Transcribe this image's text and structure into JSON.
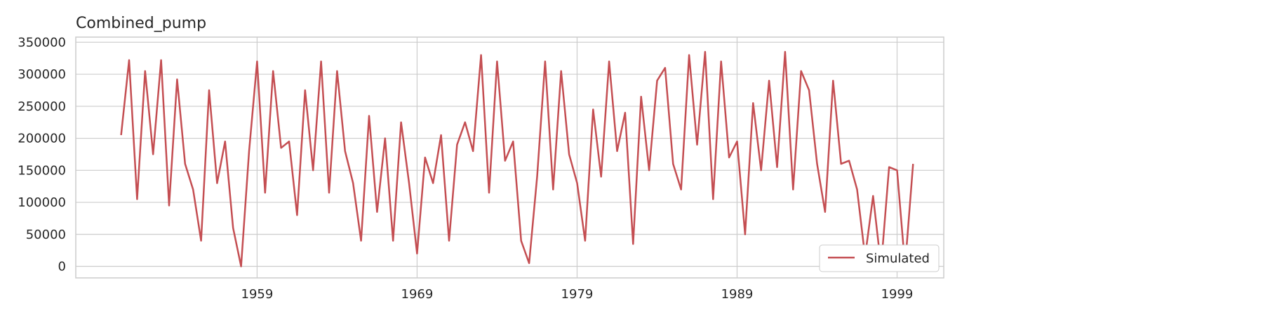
{
  "chart_data": {
    "type": "line",
    "title": "Combined_pump",
    "xlabel": "",
    "ylabel": "",
    "x_ticks": [
      "1959",
      "1969",
      "1979",
      "1989",
      "1999"
    ],
    "y_ticks": [
      "0",
      "50000",
      "100000",
      "150000",
      "200000",
      "250000",
      "300000",
      "350000"
    ],
    "ylim": [
      -18000,
      358000
    ],
    "xlim": [
      "1948-03",
      "2002-06"
    ],
    "grid": true,
    "legend": {
      "placement": "lower-right",
      "entries": [
        "Simulated"
      ]
    },
    "series": [
      {
        "name": "Simulated",
        "color": "#c44e52",
        "x": [
          "1951-01",
          "1951-07",
          "1952-01",
          "1952-07",
          "1953-01",
          "1953-07",
          "1954-01",
          "1954-07",
          "1955-01",
          "1955-07",
          "1956-01",
          "1956-07",
          "1957-01",
          "1957-07",
          "1958-01",
          "1958-07",
          "1959-01",
          "1959-07",
          "1960-01",
          "1960-07",
          "1961-01",
          "1961-07",
          "1962-01",
          "1962-07",
          "1963-01",
          "1963-07",
          "1964-01",
          "1964-07",
          "1965-01",
          "1965-07",
          "1966-01",
          "1966-07",
          "1967-01",
          "1967-07",
          "1968-01",
          "1968-07",
          "1969-01",
          "1969-07",
          "1970-01",
          "1970-07",
          "1971-01",
          "1971-07",
          "1972-01",
          "1972-07",
          "1973-01",
          "1973-07",
          "1974-01",
          "1974-07",
          "1975-01",
          "1975-07",
          "1976-01",
          "1976-07",
          "1977-01",
          "1977-07",
          "1978-01",
          "1978-07",
          "1979-01",
          "1979-07",
          "1980-01",
          "1980-07",
          "1981-01",
          "1981-07",
          "1982-01",
          "1982-07",
          "1983-01",
          "1983-07",
          "1984-01",
          "1984-07",
          "1985-01",
          "1985-07",
          "1986-01",
          "1986-07",
          "1987-01",
          "1987-07",
          "1988-01",
          "1988-07",
          "1989-01",
          "1989-07",
          "1990-01",
          "1990-07",
          "1991-01",
          "1991-07",
          "1992-01",
          "1992-07",
          "1993-01",
          "1993-07",
          "1994-01",
          "1994-07",
          "1995-01",
          "1995-07",
          "1996-01",
          "1996-07",
          "1997-01",
          "1997-07",
          "1998-01",
          "1998-07",
          "1999-01",
          "1999-07",
          "2000-01",
          "2000-07"
        ],
        "values": [
          205000,
          322000,
          105000,
          305000,
          175000,
          322000,
          95000,
          292000,
          160000,
          120000,
          40000,
          275000,
          130000,
          195000,
          60000,
          0,
          180000,
          320000,
          115000,
          305000,
          185000,
          195000,
          80000,
          275000,
          150000,
          320000,
          115000,
          305000,
          180000,
          130000,
          40000,
          235000,
          85000,
          200000,
          40000,
          225000,
          130000,
          20000,
          170000,
          130000,
          205000,
          40000,
          190000,
          225000,
          180000,
          330000,
          115000,
          320000,
          165000,
          195000,
          40000,
          5000,
          140000,
          320000,
          120000,
          305000,
          175000,
          130000,
          40000,
          245000,
          140000,
          320000,
          180000,
          240000,
          35000,
          265000,
          150000,
          290000,
          310000,
          160000,
          120000,
          330000,
          190000,
          335000,
          105000,
          320000,
          170000,
          195000,
          50000,
          255000,
          150000,
          290000,
          155000,
          335000,
          120000,
          305000,
          275000,
          160000,
          85000,
          290000,
          160000,
          165000,
          120000,
          15000,
          110000,
          0,
          155000,
          150000,
          0,
          160000
        ],
        "note": ""
      }
    ]
  }
}
